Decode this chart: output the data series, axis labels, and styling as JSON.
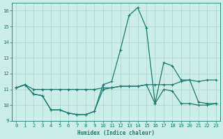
{
  "xlabel": "Humidex (Indice chaleur)",
  "bg_color": "#cceee8",
  "line_color": "#1a7a6e",
  "grid_color": "#aad4ce",
  "xlim": [
    -0.5,
    23.5
  ],
  "ylim": [
    9,
    16.5
  ],
  "yticks": [
    9,
    10,
    11,
    12,
    13,
    14,
    15,
    16
  ],
  "xticks": [
    0,
    1,
    2,
    3,
    4,
    5,
    6,
    7,
    8,
    9,
    10,
    11,
    12,
    13,
    14,
    15,
    16,
    17,
    18,
    19,
    20,
    21,
    22,
    23
  ],
  "line1_x": [
    0,
    1,
    2,
    3,
    4,
    5,
    6,
    7,
    8,
    9,
    10,
    11,
    12,
    13,
    14,
    15,
    16,
    17,
    18,
    19,
    20,
    21,
    22,
    23
  ],
  "line1_y": [
    11.1,
    11.3,
    11.0,
    11.0,
    11.0,
    11.0,
    11.0,
    11.0,
    11.0,
    11.0,
    11.1,
    11.1,
    11.2,
    11.2,
    11.2,
    11.3,
    11.3,
    11.3,
    11.3,
    11.5,
    11.6,
    11.5,
    11.6,
    11.6
  ],
  "line2_x": [
    0,
    1,
    2,
    3,
    4,
    5,
    6,
    7,
    8,
    9,
    10,
    11,
    12,
    13,
    14,
    15,
    16,
    17,
    18,
    19,
    20,
    21,
    22,
    23
  ],
  "line2_y": [
    11.1,
    11.3,
    10.7,
    10.6,
    9.7,
    9.7,
    9.5,
    9.4,
    9.4,
    9.6,
    11.3,
    11.5,
    13.5,
    15.7,
    16.2,
    14.9,
    10.1,
    12.7,
    12.5,
    11.6,
    11.6,
    10.2,
    10.1,
    10.1
  ],
  "line3_x": [
    0,
    1,
    2,
    3,
    4,
    5,
    6,
    7,
    8,
    9,
    10,
    11,
    12,
    13,
    14,
    15,
    16,
    17,
    18,
    19,
    20,
    21,
    22,
    23
  ],
  "line3_y": [
    11.1,
    11.3,
    10.7,
    10.6,
    9.7,
    9.7,
    9.5,
    9.4,
    9.4,
    9.6,
    11.0,
    11.1,
    11.2,
    11.2,
    11.2,
    11.3,
    10.1,
    11.0,
    10.9,
    10.1,
    10.1,
    10.0,
    10.0,
    10.1
  ]
}
